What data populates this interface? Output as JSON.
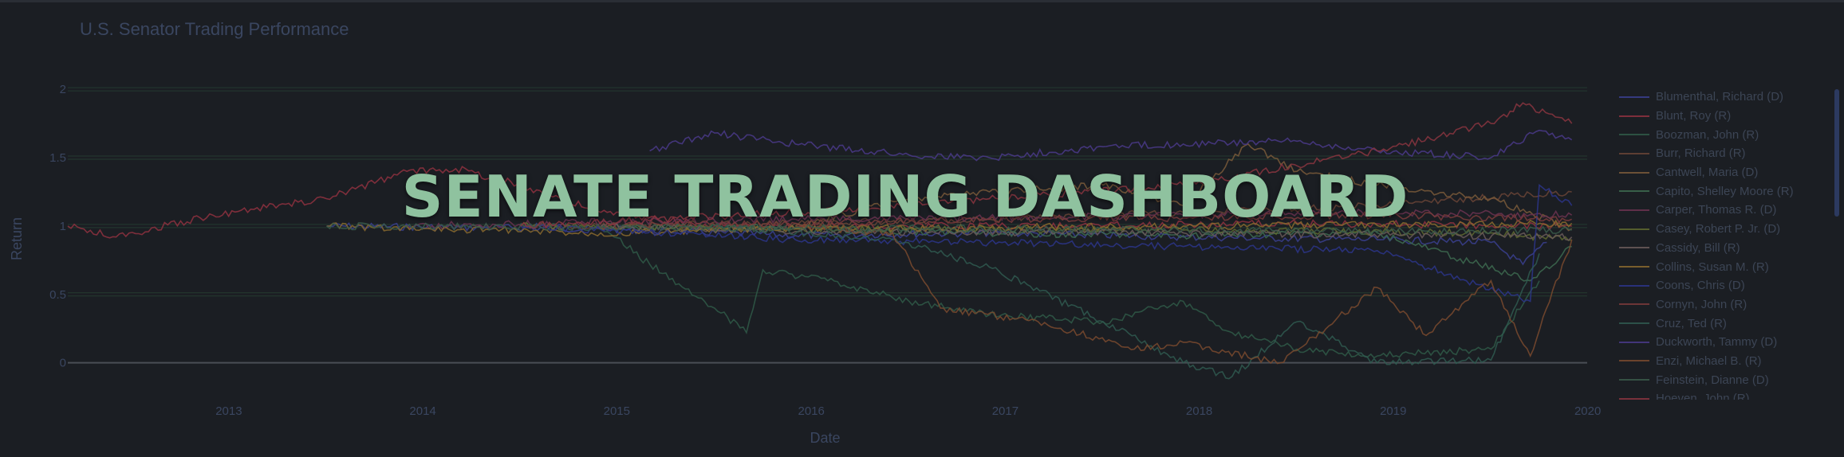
{
  "chart_data": {
    "type": "line",
    "title": "U.S. Senator Trading Performance",
    "xlabel": "Date",
    "ylabel": "Return",
    "xlim": [
      "2012-09-01",
      "2020-06-30"
    ],
    "ylim": [
      -0.2,
      2.1
    ],
    "x_ticks": [
      "2013",
      "2014",
      "2015",
      "2016",
      "2017",
      "2018",
      "2019",
      "2020"
    ],
    "y_ticks": [
      "0",
      "0.5",
      "1",
      "1.5",
      "2"
    ],
    "grid": true,
    "legend_position": "right",
    "series": [
      {
        "name": "Blumenthal, Richard (D)",
        "color": "#3a3f8f",
        "points": [
          [
            "2014-01-01",
            1.0
          ],
          [
            "2015-06-01",
            0.98
          ],
          [
            "2016-06-01",
            0.93
          ],
          [
            "2017-06-01",
            0.95
          ],
          [
            "2018-06-01",
            0.92
          ],
          [
            "2019-06-01",
            0.9
          ],
          [
            "2020-01-01",
            0.88
          ],
          [
            "2020-03-01",
            0.72
          ],
          [
            "2020-04-15",
            0.88
          ]
        ]
      },
      {
        "name": "Blunt, Roy (R)",
        "color": "#8f3140",
        "points": [
          [
            "2012-09-01",
            1.0
          ],
          [
            "2012-12-01",
            0.92
          ],
          [
            "2013-06-01",
            1.08
          ],
          [
            "2014-01-01",
            1.2
          ],
          [
            "2014-06-01",
            1.4
          ],
          [
            "2014-09-01",
            1.42
          ],
          [
            "2015-01-01",
            1.3
          ],
          [
            "2015-06-01",
            1.1
          ],
          [
            "2016-01-01",
            1.0
          ],
          [
            "2017-06-01",
            1.0
          ],
          [
            "2019-01-01",
            1.02
          ],
          [
            "2020-06-01",
            1.0
          ]
        ]
      },
      {
        "name": "Boozman, John (R)",
        "color": "#2f5a48",
        "points": [
          [
            "2015-06-01",
            1.0
          ],
          [
            "2015-09-01",
            0.72
          ],
          [
            "2016-01-01",
            0.4
          ],
          [
            "2016-03-01",
            0.22
          ],
          [
            "2016-04-01",
            0.68
          ],
          [
            "2016-08-01",
            0.6
          ],
          [
            "2017-01-01",
            0.45
          ],
          [
            "2017-06-01",
            0.35
          ],
          [
            "2018-01-01",
            0.3
          ],
          [
            "2018-06-01",
            0.45
          ],
          [
            "2018-09-01",
            0.22
          ],
          [
            "2019-01-01",
            0.1
          ],
          [
            "2019-06-01",
            0.05
          ],
          [
            "2020-01-01",
            0.1
          ],
          [
            "2020-04-01",
            0.6
          ]
        ]
      },
      {
        "name": "Burr, Richard (R)",
        "color": "#6a4436",
        "points": [
          [
            "2015-01-01",
            1.0
          ],
          [
            "2016-06-01",
            1.02
          ],
          [
            "2017-06-01",
            1.05
          ],
          [
            "2018-06-01",
            1.1
          ],
          [
            "2019-06-01",
            1.15
          ],
          [
            "2020-06-01",
            1.25
          ]
        ]
      },
      {
        "name": "Cantwell, Maria (D)",
        "color": "#7a5a3a",
        "points": [
          [
            "2016-06-01",
            1.0
          ],
          [
            "2017-01-01",
            1.2
          ],
          [
            "2017-06-01",
            1.25
          ],
          [
            "2018-01-01",
            1.3
          ],
          [
            "2018-06-01",
            1.15
          ],
          [
            "2018-10-01",
            1.6
          ],
          [
            "2019-01-01",
            1.4
          ],
          [
            "2019-06-01",
            1.3
          ],
          [
            "2020-01-01",
            1.2
          ],
          [
            "2020-06-01",
            0.98
          ]
        ]
      },
      {
        "name": "Capito, Shelley Moore (R)",
        "color": "#3d6b50",
        "points": [
          [
            "2015-06-01",
            1.0
          ],
          [
            "2016-06-01",
            0.98
          ],
          [
            "2017-06-01",
            0.95
          ],
          [
            "2018-06-01",
            0.93
          ],
          [
            "2019-06-01",
            0.95
          ],
          [
            "2020-03-15",
            0.6
          ],
          [
            "2020-06-01",
            0.85
          ]
        ]
      },
      {
        "name": "Carper, Thomas R. (D)",
        "color": "#6b3350",
        "points": [
          [
            "2014-06-01",
            1.0
          ],
          [
            "2015-06-01",
            1.03
          ],
          [
            "2016-06-01",
            1.05
          ],
          [
            "2017-06-01",
            1.06
          ],
          [
            "2018-06-01",
            1.08
          ],
          [
            "2019-06-01",
            1.1
          ],
          [
            "2020-06-01",
            1.08
          ]
        ]
      },
      {
        "name": "Casey, Robert P. Jr. (D)",
        "color": "#5f6a2f",
        "points": [
          [
            "2015-01-01",
            1.0
          ],
          [
            "2016-06-01",
            0.98
          ],
          [
            "2018-06-01",
            0.97
          ],
          [
            "2020-01-01",
            0.95
          ],
          [
            "2020-06-01",
            0.9
          ]
        ]
      },
      {
        "name": "Cassidy, Bill (R)",
        "color": "#6a5a5a",
        "points": [
          [
            "2015-06-01",
            1.0
          ],
          [
            "2016-06-01",
            0.96
          ],
          [
            "2018-06-01",
            0.95
          ],
          [
            "2020-06-01",
            0.92
          ]
        ]
      },
      {
        "name": "Collins, Susan M. (R)",
        "color": "#8a6a2e",
        "points": [
          [
            "2014-01-01",
            1.0
          ],
          [
            "2015-06-01",
            0.95
          ],
          [
            "2016-06-01",
            0.98
          ],
          [
            "2018-06-01",
            1.0
          ],
          [
            "2020-06-01",
            1.02
          ]
        ]
      },
      {
        "name": "Coons, Chris (D)",
        "color": "#2b358a",
        "points": [
          [
            "2015-01-01",
            1.0
          ],
          [
            "2016-06-01",
            0.9
          ],
          [
            "2017-06-01",
            0.88
          ],
          [
            "2018-06-01",
            0.85
          ],
          [
            "2019-06-01",
            0.82
          ],
          [
            "2020-03-15",
            0.45
          ],
          [
            "2020-04-01",
            1.3
          ],
          [
            "2020-06-01",
            1.15
          ]
        ]
      },
      {
        "name": "Cornyn, John (R)",
        "color": "#7a3b3b",
        "points": [
          [
            "2015-06-01",
            1.0
          ],
          [
            "2016-06-01",
            1.02
          ],
          [
            "2017-06-01",
            1.05
          ],
          [
            "2018-06-01",
            1.06
          ],
          [
            "2019-06-01",
            1.08
          ],
          [
            "2020-06-01",
            1.05
          ]
        ]
      },
      {
        "name": "Cruz, Ted (R)",
        "color": "#2f5a50",
        "points": [
          [
            "2016-01-01",
            1.0
          ],
          [
            "2016-12-01",
            0.9
          ],
          [
            "2017-06-01",
            0.7
          ],
          [
            "2018-01-01",
            0.3
          ],
          [
            "2018-06-01",
            0.0
          ],
          [
            "2018-09-01",
            -0.1
          ],
          [
            "2019-01-01",
            0.3
          ],
          [
            "2019-06-01",
            0.0
          ],
          [
            "2020-01-01",
            0.02
          ],
          [
            "2020-04-01",
            0.8
          ]
        ]
      },
      {
        "name": "Duckworth, Tammy (D)",
        "color": "#4a3a8a",
        "points": [
          [
            "2015-09-01",
            1.55
          ],
          [
            "2016-01-01",
            1.68
          ],
          [
            "2016-06-01",
            1.6
          ],
          [
            "2017-01-01",
            1.52
          ],
          [
            "2017-06-01",
            1.5
          ],
          [
            "2018-01-01",
            1.58
          ],
          [
            "2018-06-01",
            1.6
          ],
          [
            "2019-01-01",
            1.62
          ],
          [
            "2019-06-01",
            1.55
          ],
          [
            "2020-01-01",
            1.5
          ],
          [
            "2020-04-01",
            1.7
          ],
          [
            "2020-06-01",
            1.63
          ]
        ]
      },
      {
        "name": "Enzi, Michael B. (R)",
        "color": "#7a4a2e",
        "points": [
          [
            "2016-06-01",
            1.0
          ],
          [
            "2016-12-01",
            0.95
          ],
          [
            "2017-03-01",
            0.4
          ],
          [
            "2017-09-01",
            0.3
          ],
          [
            "2018-03-01",
            0.1
          ],
          [
            "2018-06-01",
            0.15
          ],
          [
            "2018-12-01",
            0.0
          ],
          [
            "2019-06-01",
            0.55
          ],
          [
            "2019-09-01",
            0.2
          ],
          [
            "2020-01-01",
            0.6
          ],
          [
            "2020-03-15",
            0.05
          ],
          [
            "2020-06-01",
            0.9
          ]
        ]
      },
      {
        "name": "Feinstein, Dianne (D)",
        "color": "#3a5a4a",
        "points": [
          [
            "2014-01-01",
            1.0
          ],
          [
            "2015-06-01",
            0.99
          ],
          [
            "2017-06-01",
            0.98
          ],
          [
            "2019-06-01",
            0.96
          ],
          [
            "2020-06-01",
            0.97
          ]
        ]
      },
      {
        "name": "Hoeven, John (R)",
        "color": "#8a3540",
        "points": [
          [
            "2015-01-01",
            1.0
          ],
          [
            "2016-06-01",
            1.1
          ],
          [
            "2017-06-01",
            1.2
          ],
          [
            "2018-06-01",
            1.3
          ],
          [
            "2019-06-01",
            1.55
          ],
          [
            "2020-01-01",
            1.75
          ],
          [
            "2020-03-01",
            1.9
          ],
          [
            "2020-06-01",
            1.75
          ]
        ]
      }
    ]
  },
  "overlay_title": "SENATE TRADING DASHBOARD"
}
